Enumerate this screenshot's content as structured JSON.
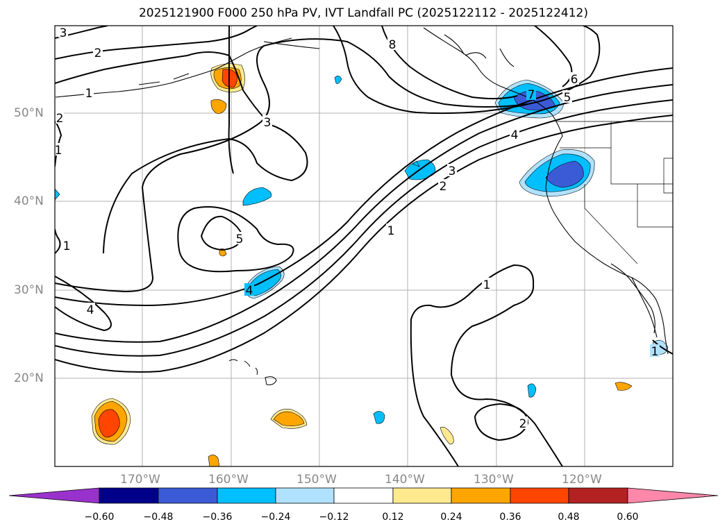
{
  "title": "2025121900 F000 250 hPa PV, IVT Landfall PC (2025122112 - 2025122412)",
  "lat_labels": [
    "50°N",
    "40°N",
    "30°N",
    "20°N"
  ],
  "lon_labels": [
    "170°W",
    "160°W",
    "150°W",
    "140°W",
    "130°W",
    "120°W"
  ],
  "contour_labels": [
    "3",
    "2",
    "1",
    "3",
    "8",
    "6",
    "7",
    "5",
    "4",
    "3",
    "2",
    "1",
    "5",
    "4",
    "1",
    "4",
    "1",
    "1",
    "2",
    "1",
    "2"
  ],
  "colorbar": {
    "ticks": [
      "−0.60",
      "−0.48",
      "−0.36",
      "−0.24",
      "−0.12",
      "0.12",
      "0.24",
      "0.36",
      "0.48",
      "0.60"
    ],
    "colors": [
      "#9932cc",
      "#00008b",
      "#3b5bd6",
      "#00bfff",
      "#b0e2ff",
      "#ffffff",
      "#ffe98f",
      "#ffa500",
      "#ff4500",
      "#b22222",
      "#ff88aa"
    ]
  }
}
